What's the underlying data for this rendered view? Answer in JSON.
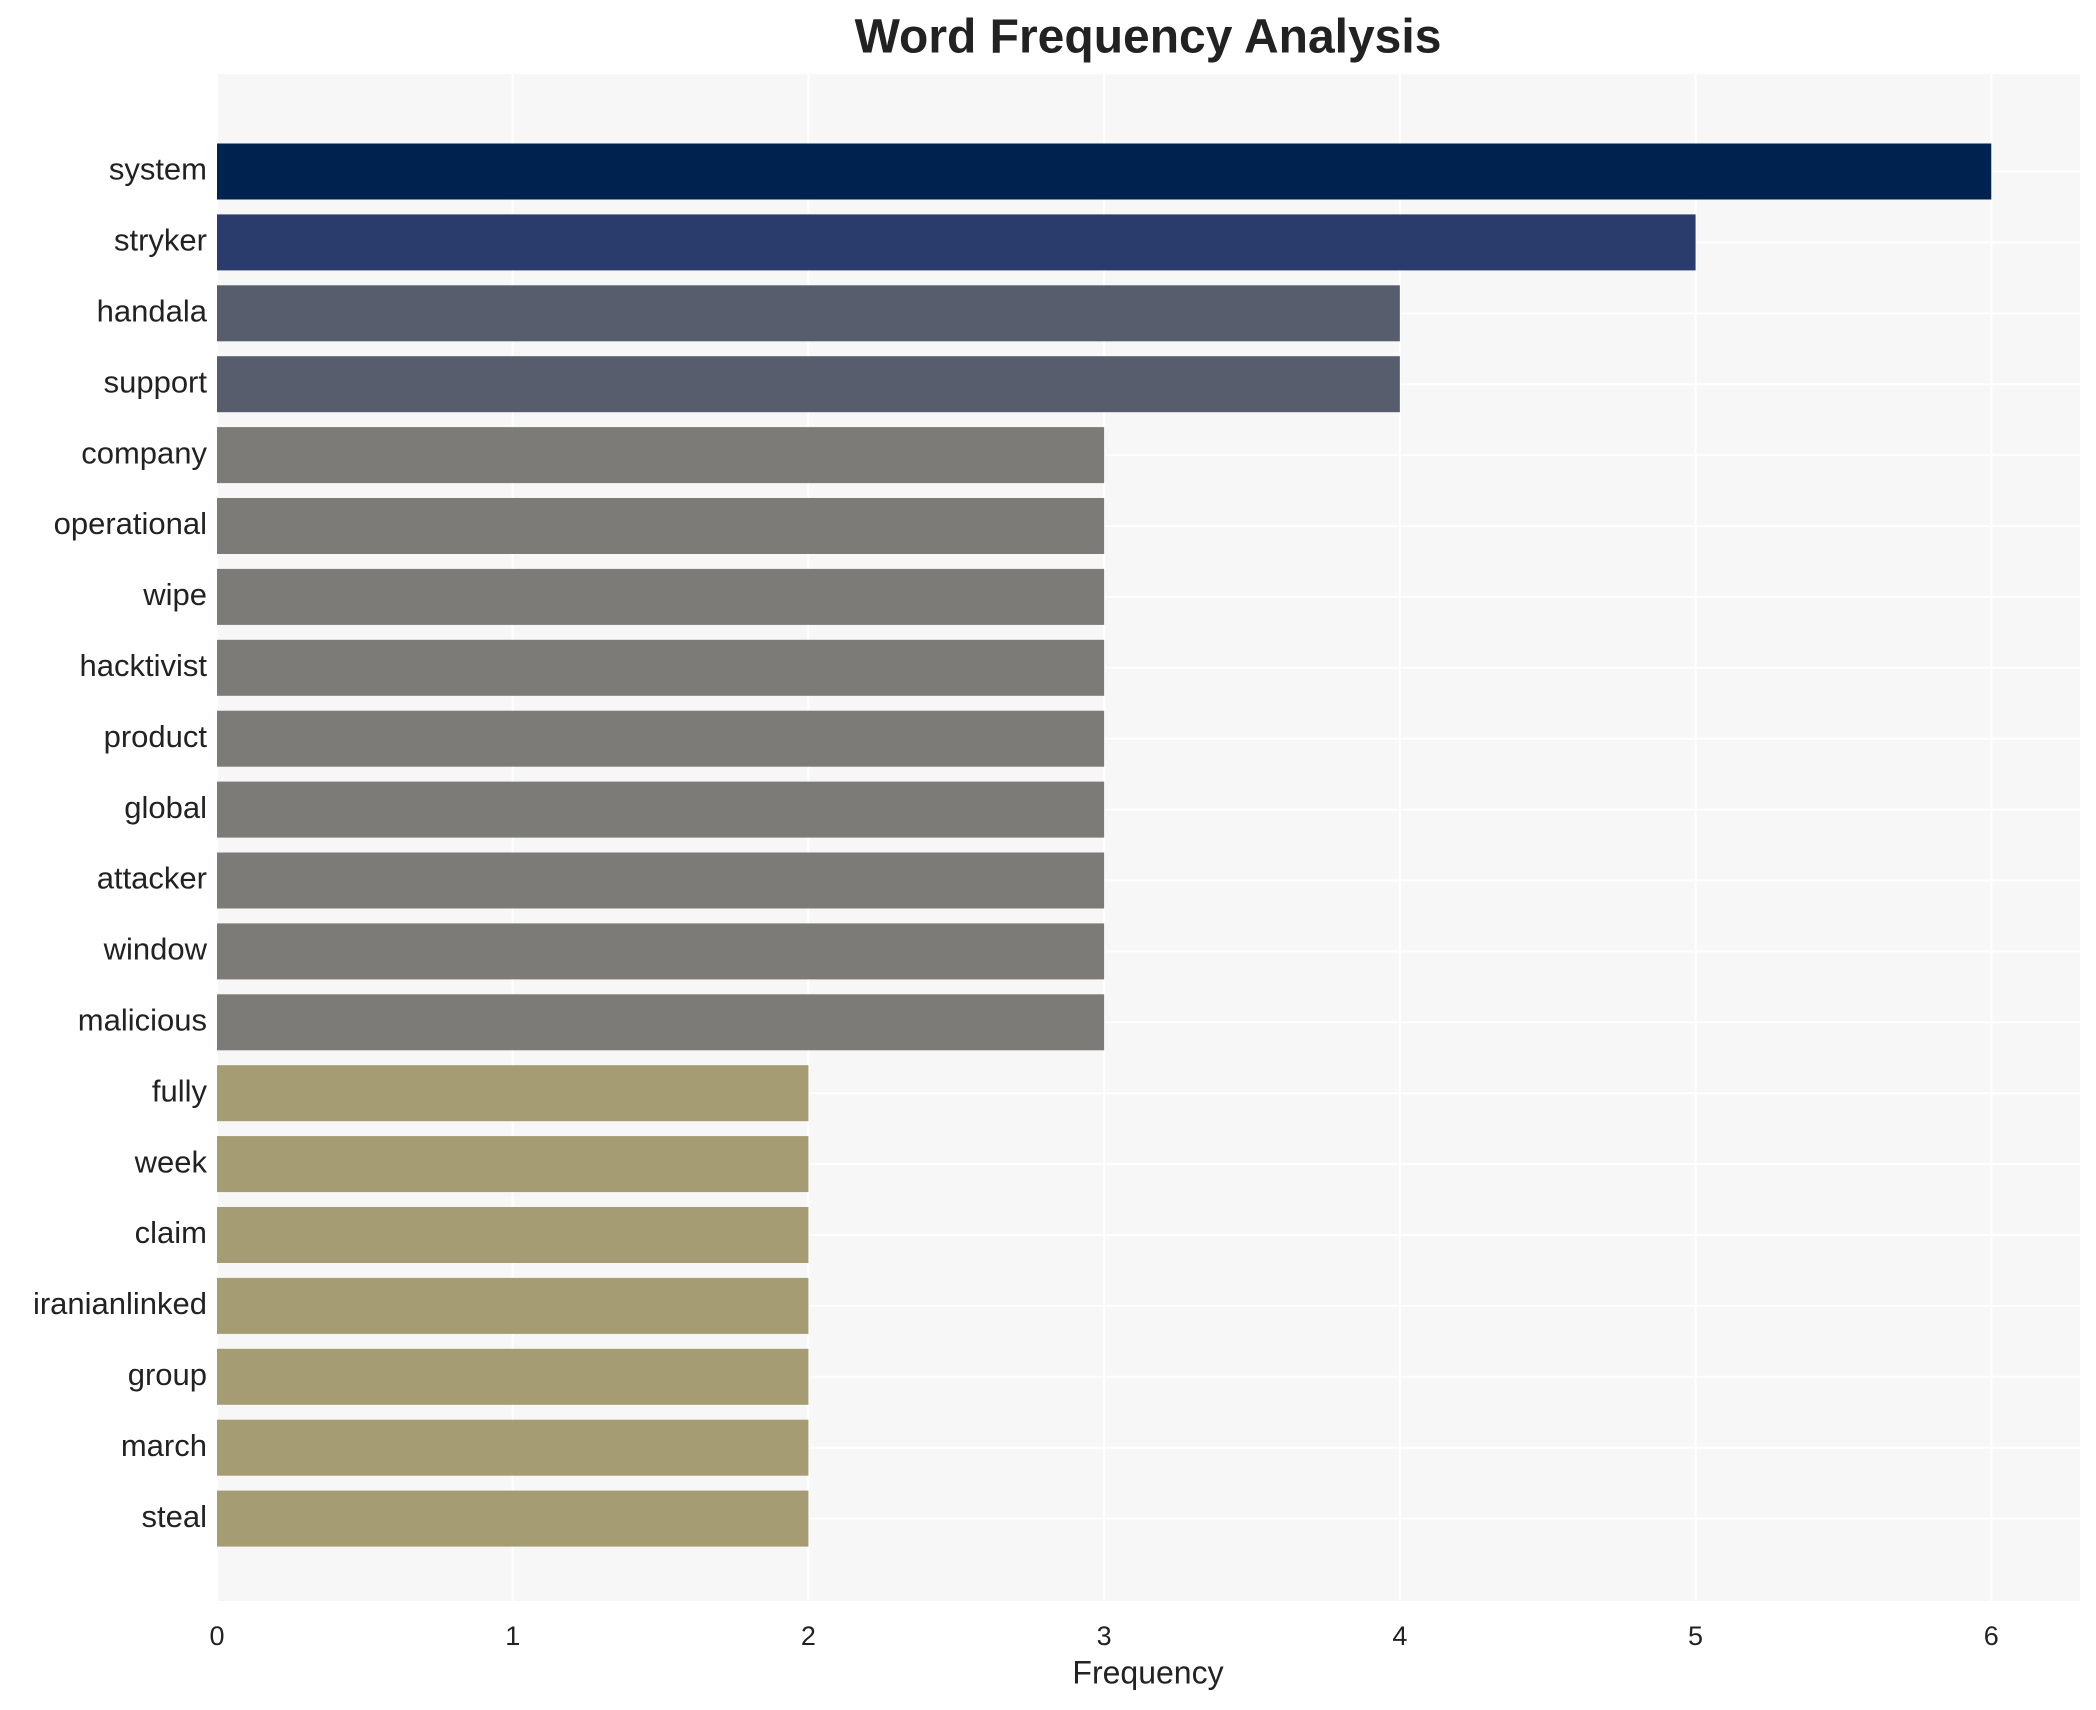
{
  "chart_data": {
    "type": "hbar",
    "title": "Word Frequency Analysis",
    "x_label": "Frequency",
    "categories": [
      "system",
      "stryker",
      "handala",
      "support",
      "company",
      "operational",
      "wipe",
      "hacktivist",
      "product",
      "global",
      "attacker",
      "window",
      "malicious",
      "fully",
      "week",
      "claim",
      "iranianlinked",
      "group",
      "march",
      "steal"
    ],
    "values": [
      6,
      5,
      4,
      4,
      3,
      3,
      3,
      3,
      3,
      3,
      3,
      3,
      3,
      2,
      2,
      2,
      2,
      2,
      2,
      2
    ],
    "colors": [
      "#00224e",
      "#2a3c6c",
      "#575d6d",
      "#575d6d",
      "#7c7b78",
      "#7c7b78",
      "#7c7b78",
      "#7c7b78",
      "#7c7b78",
      "#7c7b78",
      "#7c7b78",
      "#7c7b78",
      "#7c7b78",
      "#a59c74",
      "#a59c74",
      "#a59c74",
      "#a59c74",
      "#a59c74",
      "#a59c74",
      "#a59c74"
    ],
    "xlim": [
      0,
      6.3
    ],
    "xticks": [
      0,
      1,
      2,
      3,
      4,
      5,
      6
    ],
    "grid": true
  }
}
